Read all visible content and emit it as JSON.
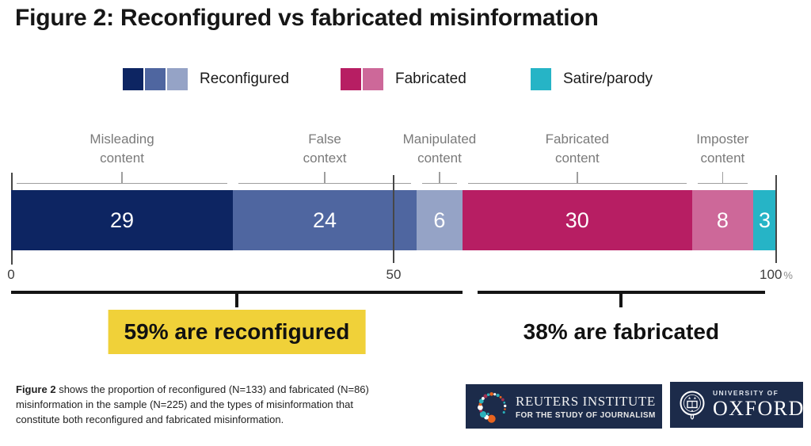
{
  "title": "Figure 2: Reconfigured vs fabricated misinformation",
  "legend": {
    "items": [
      {
        "label": "Reconfigured",
        "colors": [
          "#0d2562",
          "#4f66a0",
          "#95a3c6"
        ]
      },
      {
        "label": "Fabricated",
        "colors": [
          "#b71e63",
          "#cd6899"
        ]
      },
      {
        "label": "Satire/parody",
        "colors": [
          "#26b4c6"
        ]
      }
    ]
  },
  "chart_data": {
    "type": "bar",
    "stacked": true,
    "orientation": "horizontal",
    "categories": [
      "Misleading\ncontent",
      "False\ncontext",
      "Manipulated\ncontent",
      "Fabricated\ncontent",
      "Imposter\ncontent",
      "Satire/parody"
    ],
    "values": [
      29,
      24,
      6,
      30,
      8,
      3
    ],
    "colors": [
      "#0d2562",
      "#4f66a0",
      "#95a3c6",
      "#b71e63",
      "#cd6899",
      "#26b4c6"
    ],
    "label_above": [
      true,
      true,
      true,
      true,
      true,
      false
    ],
    "xlim": [
      0,
      100
    ],
    "axis": {
      "ticks": [
        {
          "label": "0",
          "pct": 0,
          "suffix": ""
        },
        {
          "label": "50",
          "pct": 50,
          "suffix": ""
        },
        {
          "label": "100",
          "pct": 100,
          "suffix": "%"
        }
      ]
    },
    "annotations": [
      {
        "text": "59% are reconfigured",
        "from_pct": 0,
        "to_pct": 59,
        "highlight": true,
        "highlight_color": "#f0d139"
      },
      {
        "text": "38% are fabricated",
        "from_pct": 61,
        "to_pct": 98.5,
        "highlight": false
      }
    ]
  },
  "caption": {
    "bold": "Figure 2",
    "rest": " shows the proportion of reconfigured (N=133) and fabricated (N=86) misinformation in the sample (N=225) and the types of misinformation that constitute both reconfigured and fabricated misinformation."
  },
  "logos": {
    "reuters": {
      "line1": "REUTERS INSTITUTE",
      "line2": "FOR THE STUDY OF JOURNALISM",
      "bg": "#1c2b4a"
    },
    "oxford": {
      "line1": "UNIVERSITY OF",
      "line2": "OXFORD",
      "bg": "#1c2b4a"
    }
  }
}
